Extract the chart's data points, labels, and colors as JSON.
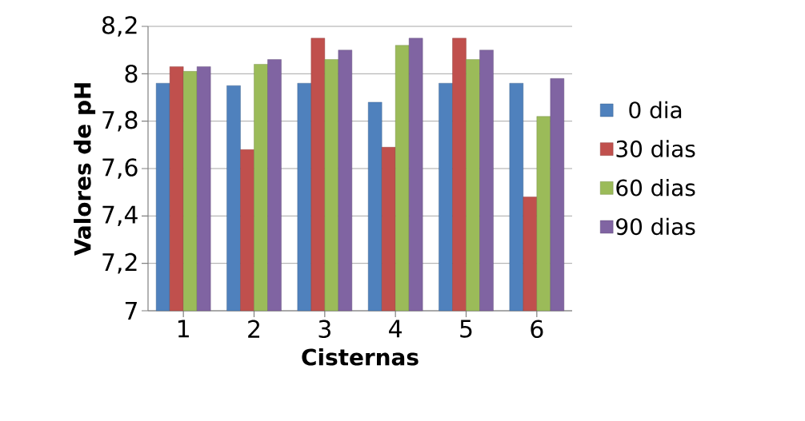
{
  "chart_data": {
    "type": "bar",
    "xlabel": "Cisternas",
    "ylabel": "Valores de pH",
    "categories": [
      "1",
      "2",
      "3",
      "4",
      "5",
      "6"
    ],
    "series": [
      {
        "name": "0 dia",
        "color": "#4f81bd",
        "values": [
          7.96,
          7.95,
          7.96,
          7.88,
          7.96,
          7.96
        ]
      },
      {
        "name": "30 dias",
        "color": "#c0504d",
        "values": [
          8.03,
          7.68,
          8.15,
          7.69,
          8.15,
          7.48
        ]
      },
      {
        "name": "60 dias",
        "color": "#9bbb59",
        "values": [
          8.01,
          8.04,
          8.06,
          8.12,
          8.06,
          7.82
        ]
      },
      {
        "name": "90 dias",
        "color": "#8064a2",
        "values": [
          8.03,
          8.06,
          8.1,
          8.15,
          8.1,
          7.98
        ]
      }
    ],
    "ylim": [
      7,
      8.2
    ],
    "yticks": [
      7,
      {
        "value": 7.2,
        "label": "7,2"
      },
      {
        "value": 7.4,
        "label": "7,4"
      },
      {
        "value": 7.6,
        "label": "7,6"
      },
      {
        "value": 7.8,
        "label": "7,8"
      },
      8,
      {
        "value": 8.2,
        "label": "8,2"
      }
    ],
    "grid": "y",
    "legend": "right"
  }
}
